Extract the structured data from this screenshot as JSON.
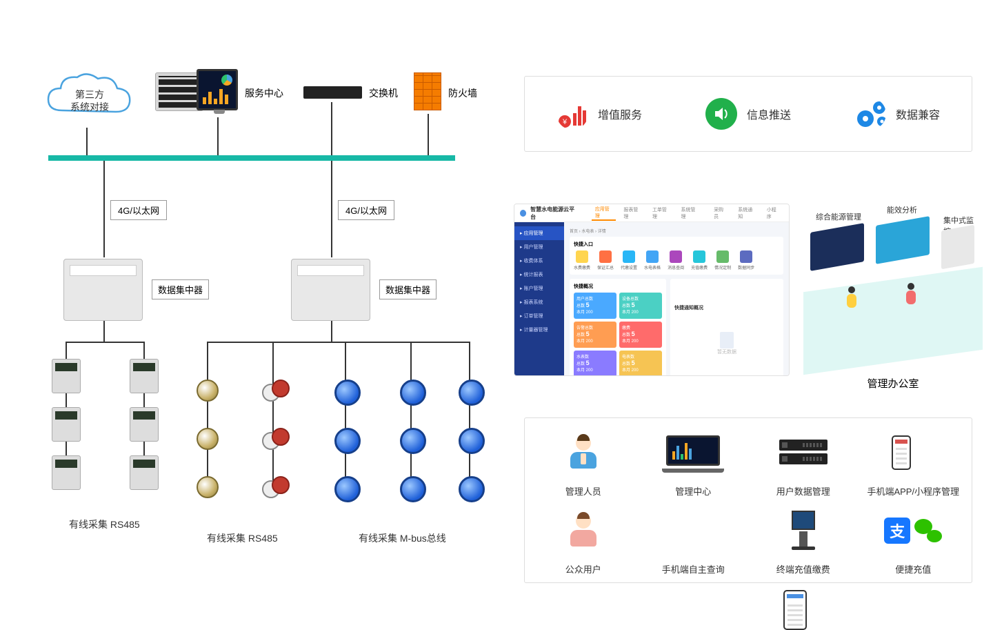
{
  "colors": {
    "bus": "#17b8a6",
    "line": "#333333",
    "firewall": "#f57c00",
    "feat_red": "#e53935",
    "feat_green": "#21b04b",
    "feat_blue": "#1e88e5",
    "dash_side": "#1e3a8a",
    "dash_accent": "#ff8a00",
    "tile_blue": "#4aa9ff",
    "tile_orange": "#ff9d52",
    "tile_red": "#ff6b6b",
    "tile_teal": "#4bd0c4",
    "tile_yellow": "#f6c453",
    "tile_purple": "#8a7bff",
    "alipay": "#1677ff",
    "wechat": "#2dc100"
  },
  "diagram": {
    "cloud": "第三方\n系统对接",
    "server_label": "服务中心",
    "switch_label": "交换机",
    "firewall_label": "防火墙",
    "link_label": "4G/以太网",
    "dcu_label": "数据集中器",
    "bottom_labels": {
      "left": "有线采集 RS485",
      "mid": "有线采集 RS485",
      "right": "有线采集 M-bus总线"
    }
  },
  "features": [
    {
      "label": "增值服务",
      "icon": "chart-yen-icon",
      "color": "#e53935"
    },
    {
      "label": "信息推送",
      "icon": "speaker-icon",
      "color": "#21b04b"
    },
    {
      "label": "数据兼容",
      "icon": "gears-icon",
      "color": "#1e88e5"
    }
  ],
  "dashboard": {
    "title": "智慧水电能源云平台",
    "top_tabs": [
      "应用管理",
      "报表管理",
      "工单管理",
      "系统管理"
    ],
    "top_right": [
      "采购员",
      "系统通知",
      "小程序"
    ],
    "side": [
      "应用管理",
      "用户管理",
      "收费体系",
      "统计报表",
      "账户管理",
      "报表系统",
      "订单管理",
      "计量器管理"
    ],
    "side_active_index": 0,
    "breadcrumb": [
      "首页",
      "水电表",
      "详情"
    ],
    "quick_title": "快捷入口",
    "quick_items": [
      {
        "label": "水费缴费",
        "color": "#ffd54f"
      },
      {
        "label": "保证汇总",
        "color": "#ff7043"
      },
      {
        "label": "代缴设置",
        "color": "#29b6f6"
      },
      {
        "label": "水电表格",
        "color": "#42a5f5"
      },
      {
        "label": "消息查阅",
        "color": "#ab47bc"
      },
      {
        "label": "充值缴费",
        "color": "#26c6da"
      },
      {
        "label": "情况定制",
        "color": "#66bb6a"
      },
      {
        "label": "数据同步",
        "color": "#5c6bc0"
      }
    ],
    "tiles_title": "快捷概况",
    "tiles": [
      {
        "label": "用户总数",
        "n1": 5,
        "n2": 200,
        "color": "#4aa9ff"
      },
      {
        "label": "设备总数",
        "n1": 5,
        "n2": 200,
        "color": "#4bd0c4"
      },
      {
        "label": "告警总数",
        "n1": 5,
        "n2": 200,
        "color": "#ff9d52"
      },
      {
        "label": "缴费",
        "n1": 5,
        "n2": 200,
        "color": "#ff6b6b"
      },
      {
        "label": "水表数",
        "n1": 5,
        "n2": 200,
        "color": "#8a7bff"
      },
      {
        "label": "电表数",
        "n1": 5,
        "n2": 200,
        "color": "#f6c453"
      }
    ],
    "right_box_title": "快捷通知概况",
    "right_box_empty": "暂无数据"
  },
  "iso": {
    "board_tags": [
      "综合能源管理",
      "能效分析",
      "集中式监控"
    ],
    "caption": "管理办公室"
  },
  "bottom_grid": [
    {
      "label": "管理人员",
      "icon": "manager-icon"
    },
    {
      "label": "管理中心",
      "icon": "laptop-dashboard-icon"
    },
    {
      "label": "用户数据管理",
      "icon": "server-rack-icon"
    },
    {
      "label": "手机端APP/小程序管理",
      "icon": "phone-app-icon"
    },
    {
      "label": "公众用户",
      "icon": "public-user-icon"
    },
    {
      "label": "手机端自主查询",
      "icon": "phone-query-icon"
    },
    {
      "label": "终端充值缴费",
      "icon": "kiosk-icon"
    },
    {
      "label": "便捷充值",
      "icon": "mobile-pay-icon"
    }
  ]
}
